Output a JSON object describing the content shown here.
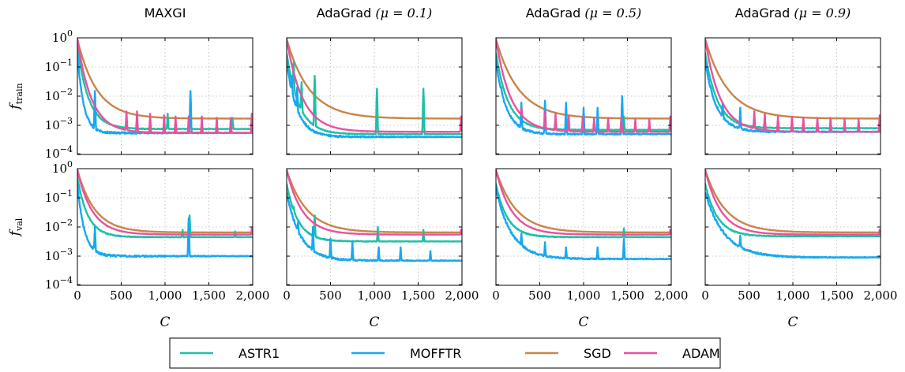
{
  "chart_data": {
    "type": "line",
    "layout": "2x4 grid of line plots (log-scale y), shared x and y axes",
    "columns": [
      {
        "title_text": "MAXGI",
        "title_param": ""
      },
      {
        "title_text": "AdaGrad",
        "title_param": "(μ = 0.1)"
      },
      {
        "title_text": "AdaGrad",
        "title_param": "(μ = 0.5)"
      },
      {
        "title_text": "AdaGrad",
        "title_param": "(μ = 0.9)"
      }
    ],
    "rows": [
      {
        "ylabel": "f",
        "ylabel_sub": "train"
      },
      {
        "ylabel": "f",
        "ylabel_sub": "val"
      }
    ],
    "xlabel": "C",
    "x_ticks": [
      "0",
      "500",
      "1,000",
      "1,500",
      "2,000"
    ],
    "x_tick_values": [
      0,
      500,
      1000,
      1500,
      2000
    ],
    "xlim": [
      0,
      2000
    ],
    "y_scale": "log",
    "ylim": [
      0.0001,
      1
    ],
    "y_ticks": [
      {
        "base": "10",
        "exp": "0",
        "value": 1
      },
      {
        "base": "10",
        "exp": "−1",
        "value": 0.1
      },
      {
        "base": "10",
        "exp": "−2",
        "value": 0.01
      },
      {
        "base": "10",
        "exp": "−3",
        "value": 0.001
      },
      {
        "base": "10",
        "exp": "−4",
        "value": 0.0001
      }
    ],
    "grid": true,
    "legend": {
      "placement": "bottom-center",
      "entries": [
        {
          "name": "ASTR1",
          "color": "#1fc0a6"
        },
        {
          "name": "MOFFTR",
          "color": "#18a8f0"
        },
        {
          "name": "SGD",
          "color": "#c9854a"
        },
        {
          "name": "ADAM",
          "color": "#e8529f"
        }
      ]
    },
    "panels": [
      {
        "row": 0,
        "col": 0,
        "series": [
          {
            "name": "ASTR1",
            "start": 0.5,
            "end": 0.00075,
            "tau": 130,
            "spikes": [
              [
                1030,
                0.0025
              ],
              [
                1290,
                0.003
              ],
              [
                1770,
                0.0018
              ]
            ]
          },
          {
            "name": "MOFFTR",
            "start": 0.3,
            "end": 0.00055,
            "tau": 70,
            "spikes": [
              [
                200,
                0.015
              ],
              [
                1290,
                0.015
              ]
            ]
          },
          {
            "name": "SGD",
            "start": 0.9,
            "end": 0.0017,
            "tau": 220,
            "spikes": []
          },
          {
            "name": "ADAM",
            "start": 0.9,
            "end": 0.00055,
            "tau": 160,
            "spikes": [
              [
                560,
                0.003
              ],
              [
                680,
                0.003
              ],
              [
                830,
                0.0025
              ],
              [
                990,
                0.0022
              ],
              [
                1120,
                0.002
              ],
              [
                1270,
                0.002
              ],
              [
                1420,
                0.002
              ],
              [
                1590,
                0.0018
              ],
              [
                1750,
                0.0018
              ],
              [
                1990,
                0.0025
              ]
            ]
          }
        ]
      },
      {
        "row": 0,
        "col": 1,
        "series": [
          {
            "name": "ASTR1",
            "start": 0.3,
            "end": 0.0005,
            "tau": 140,
            "spikes": [
              [
                80,
                0.15
              ],
              [
                170,
                0.03
              ],
              [
                320,
                0.05
              ],
              [
                1030,
                0.018
              ],
              [
                1560,
                0.018
              ]
            ]
          },
          {
            "name": "MOFFTR",
            "start": 0.15,
            "end": 0.0004,
            "tau": 120,
            "spikes": [
              [
                60,
                0.05
              ],
              [
                120,
                0.02
              ]
            ]
          },
          {
            "name": "SGD",
            "start": 0.9,
            "end": 0.0017,
            "tau": 260,
            "spikes": []
          },
          {
            "name": "ADAM",
            "start": 0.9,
            "end": 0.0006,
            "tau": 180,
            "spikes": [
              [
                1990,
                0.002
              ]
            ]
          }
        ]
      },
      {
        "row": 0,
        "col": 2,
        "series": [
          {
            "name": "ASTR1",
            "start": 0.3,
            "end": 0.0007,
            "tau": 140,
            "spikes": [
              [
                1460,
                0.002
              ],
              [
                1990,
                0.002
              ]
            ]
          },
          {
            "name": "MOFFTR",
            "start": 0.15,
            "end": 0.0005,
            "tau": 120,
            "spikes": [
              [
                60,
                0.02
              ],
              [
                290,
                0.006
              ],
              [
                560,
                0.007
              ],
              [
                800,
                0.006
              ],
              [
                1000,
                0.004
              ],
              [
                1160,
                0.004
              ],
              [
                1440,
                0.01
              ]
            ]
          },
          {
            "name": "SGD",
            "start": 0.9,
            "end": 0.0017,
            "tau": 260,
            "spikes": []
          },
          {
            "name": "ADAM",
            "start": 0.9,
            "end": 0.0006,
            "tau": 170,
            "spikes": [
              [
                290,
                0.004
              ],
              [
                560,
                0.003
              ],
              [
                680,
                0.0025
              ],
              [
                830,
                0.002
              ],
              [
                990,
                0.002
              ],
              [
                1120,
                0.0018
              ],
              [
                1280,
                0.0018
              ],
              [
                1430,
                0.0018
              ],
              [
                1590,
                0.0016
              ],
              [
                1750,
                0.0016
              ],
              [
                1990,
                0.002
              ]
            ]
          }
        ]
      },
      {
        "row": 0,
        "col": 3,
        "series": [
          {
            "name": "ASTR1",
            "start": 0.3,
            "end": 0.0008,
            "tau": 140,
            "spikes": []
          },
          {
            "name": "MOFFTR",
            "start": 0.15,
            "end": 0.0006,
            "tau": 130,
            "spikes": [
              [
                60,
                0.02
              ],
              [
                200,
                0.006
              ],
              [
                400,
                0.004
              ]
            ]
          },
          {
            "name": "SGD",
            "start": 0.9,
            "end": 0.0017,
            "tau": 260,
            "spikes": []
          },
          {
            "name": "ADAM",
            "start": 0.9,
            "end": 0.0006,
            "tau": 170,
            "spikes": [
              [
                560,
                0.003
              ],
              [
                680,
                0.0025
              ],
              [
                830,
                0.002
              ],
              [
                990,
                0.002
              ],
              [
                1120,
                0.0018
              ],
              [
                1280,
                0.0018
              ],
              [
                1430,
                0.0018
              ],
              [
                1590,
                0.0016
              ],
              [
                1750,
                0.0016
              ],
              [
                1990,
                0.0022
              ]
            ]
          }
        ]
      },
      {
        "row": 1,
        "col": 0,
        "series": [
          {
            "name": "ASTR1",
            "start": 0.5,
            "end": 0.0045,
            "tau": 120,
            "spikes": [
              [
                1200,
                0.008
              ],
              [
                1280,
                0.025
              ],
              [
                1800,
                0.007
              ]
            ]
          },
          {
            "name": "MOFFTR",
            "start": 0.3,
            "end": 0.001,
            "tau": 80,
            "spikes": [
              [
                200,
                0.01
              ],
              [
                1270,
                0.02
              ]
            ]
          },
          {
            "name": "SGD",
            "start": 0.9,
            "end": 0.0065,
            "tau": 200,
            "spikes": []
          },
          {
            "name": "ADAM",
            "start": 0.9,
            "end": 0.0055,
            "tau": 170,
            "spikes": [
              [
                1990,
                0.009
              ]
            ]
          }
        ]
      },
      {
        "row": 1,
        "col": 1,
        "series": [
          {
            "name": "ASTR1",
            "start": 0.3,
            "end": 0.0032,
            "tau": 130,
            "spikes": [
              [
                80,
                0.05
              ],
              [
                320,
                0.025
              ],
              [
                1040,
                0.01
              ],
              [
                1560,
                0.008
              ]
            ]
          },
          {
            "name": "MOFFTR",
            "start": 0.15,
            "end": 0.0007,
            "tau": 160,
            "spikes": [
              [
                60,
                0.03
              ],
              [
                130,
                0.015
              ],
              [
                300,
                0.01
              ],
              [
                500,
                0.004
              ],
              [
                750,
                0.003
              ],
              [
                1050,
                0.002
              ],
              [
                1300,
                0.002
              ],
              [
                1640,
                0.0015
              ]
            ]
          },
          {
            "name": "SGD",
            "start": 0.9,
            "end": 0.0065,
            "tau": 230,
            "spikes": []
          },
          {
            "name": "ADAM",
            "start": 0.9,
            "end": 0.0055,
            "tau": 180,
            "spikes": [
              [
                1990,
                0.008
              ]
            ]
          }
        ]
      },
      {
        "row": 1,
        "col": 2,
        "series": [
          {
            "name": "ASTR1",
            "start": 0.3,
            "end": 0.0045,
            "tau": 130,
            "spikes": [
              [
                1460,
                0.009
              ]
            ]
          },
          {
            "name": "MOFFTR",
            "start": 0.2,
            "end": 0.0008,
            "tau": 180,
            "spikes": [
              [
                60,
                0.03
              ],
              [
                290,
                0.006
              ],
              [
                560,
                0.003
              ],
              [
                800,
                0.002
              ],
              [
                1160,
                0.002
              ],
              [
                1460,
                0.004
              ]
            ]
          },
          {
            "name": "SGD",
            "start": 0.9,
            "end": 0.0065,
            "tau": 230,
            "spikes": []
          },
          {
            "name": "ADAM",
            "start": 0.9,
            "end": 0.0055,
            "tau": 180,
            "spikes": [
              [
                1990,
                0.008
              ]
            ]
          }
        ]
      },
      {
        "row": 1,
        "col": 3,
        "series": [
          {
            "name": "ASTR1",
            "start": 0.3,
            "end": 0.0048,
            "tau": 140,
            "spikes": []
          },
          {
            "name": "MOFFTR",
            "start": 0.15,
            "end": 0.0009,
            "tau": 220,
            "spikes": [
              [
                200,
                0.008
              ],
              [
                400,
                0.005
              ]
            ]
          },
          {
            "name": "SGD",
            "start": 0.9,
            "end": 0.0065,
            "tau": 230,
            "spikes": []
          },
          {
            "name": "ADAM",
            "start": 0.9,
            "end": 0.0055,
            "tau": 180,
            "spikes": [
              [
                1990,
                0.008
              ]
            ]
          }
        ]
      }
    ]
  }
}
